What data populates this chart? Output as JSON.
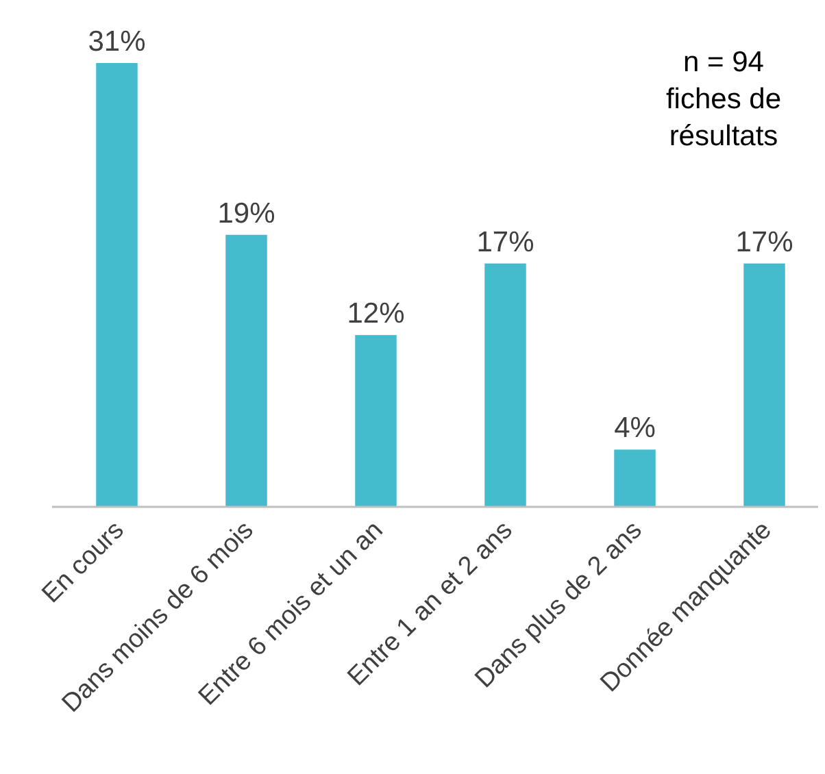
{
  "chart_data": {
    "type": "bar",
    "categories": [
      "En cours",
      "Dans moins de 6 mois",
      "Entre 6 mois et un an",
      "Entre 1 an et 2 ans",
      "Dans plus de 2 ans",
      "Donnée manquante"
    ],
    "values": [
      31,
      19,
      12,
      17,
      4,
      17
    ],
    "value_labels": [
      "31%",
      "19%",
      "12%",
      "17%",
      "4%",
      "17%"
    ],
    "color": "#45bccd",
    "annotations": [
      "n = 94\nfiches de\nrésultats"
    ]
  }
}
